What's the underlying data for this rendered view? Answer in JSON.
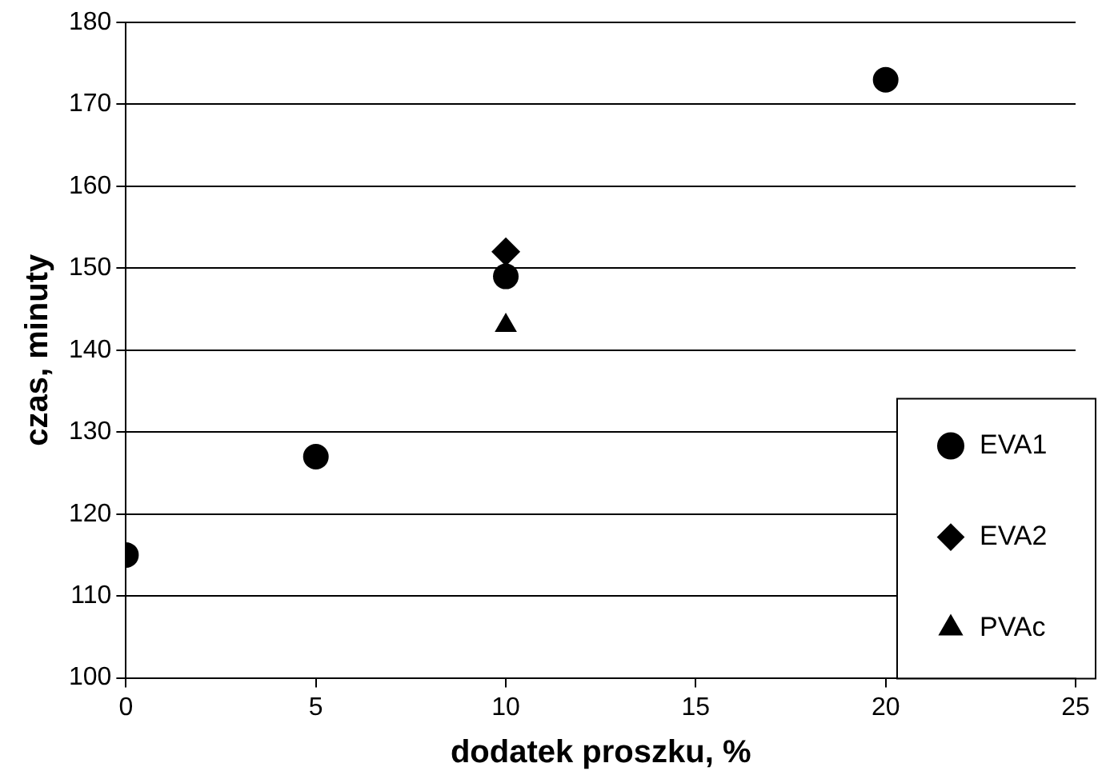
{
  "chart_data": {
    "type": "scatter",
    "xlabel": "dodatek proszku, %",
    "ylabel": "czas, minuty",
    "series": [
      {
        "name": "EVA1",
        "color": "#000000",
        "marker": "circle",
        "x": [
          0,
          5,
          10,
          20
        ],
        "values": [
          115,
          127,
          149,
          173
        ]
      },
      {
        "name": "EVA2",
        "color": "#000000",
        "marker": "diamond",
        "x": [
          10
        ],
        "values": [
          152
        ]
      },
      {
        "name": "PVAc",
        "color": "#000000",
        "marker": "triangle",
        "x": [
          10
        ],
        "values": [
          143
        ]
      }
    ],
    "xlim": [
      0,
      25
    ],
    "xticks": [
      0,
      5,
      10,
      15,
      20,
      25
    ],
    "ylim": [
      100,
      180
    ],
    "yticks": [
      100,
      110,
      120,
      130,
      140,
      150,
      160,
      170,
      180
    ],
    "grid": "y",
    "legend": "bottom right"
  }
}
